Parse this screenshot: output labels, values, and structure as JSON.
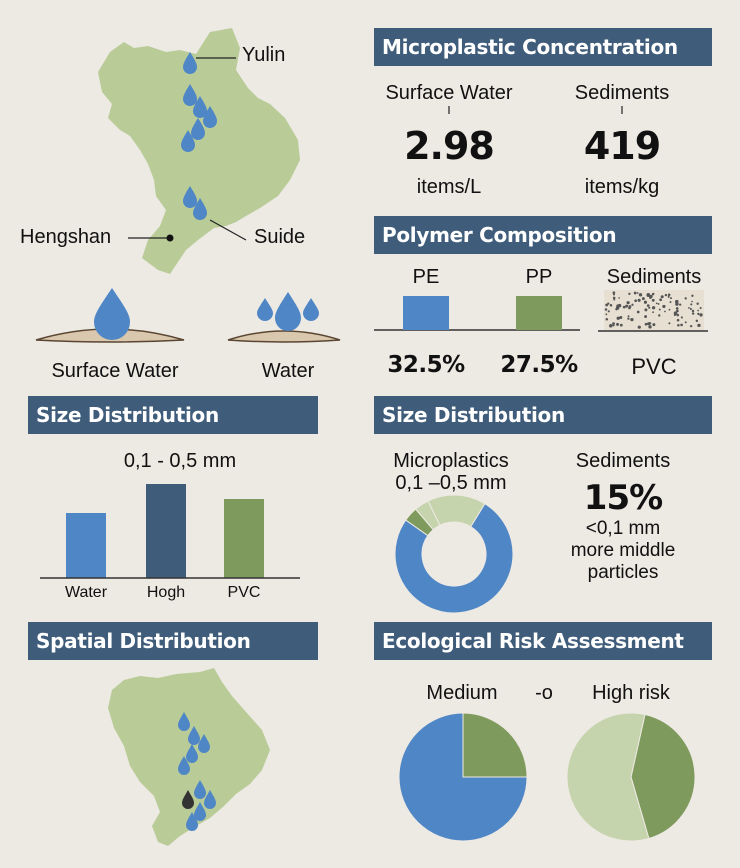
{
  "map_top": {
    "labels": {
      "yulin": "Yulin",
      "hengshan": "Hengshan",
      "suide": "Suide"
    },
    "land_color": "#b9cc98",
    "drop_color": "#4f86c6"
  },
  "water_icons": {
    "surface_label": "Surface Water",
    "water_label": "Water"
  },
  "concentration": {
    "title": "Microplastic Concentration",
    "surface": {
      "label": "Surface Water",
      "value": "2.98",
      "unit": "items/L"
    },
    "sediments": {
      "label": "Sediments",
      "value": "419",
      "unit": "items/kg"
    }
  },
  "polymer": {
    "title": "Polymer Composition",
    "pe": {
      "label": "PE",
      "value": "32.5%",
      "color": "#4f86c6"
    },
    "pp": {
      "label": "PP",
      "value": "27.5%",
      "color": "#7f9a5d"
    },
    "sediments": {
      "label": "Sediments",
      "value": "PVC"
    }
  },
  "size_left": {
    "title": "Size Distribution",
    "range": "0,1 - 0,5 mm",
    "chart_data": {
      "type": "bar",
      "categories": [
        "Water",
        "Hogh",
        "PVC"
      ],
      "values": [
        0.65,
        0.94,
        0.79
      ],
      "colors": [
        "#4f86c6",
        "#3f5c7a",
        "#7f9a5d"
      ],
      "ylim": [
        0,
        1
      ]
    }
  },
  "size_right": {
    "title": "Size Distribution",
    "micro_label": "Microplastics",
    "micro_range": "0,1 –0,5 mm",
    "sed_label": "Sediments",
    "sed_pct": "15%",
    "sed_desc1": "<0,1 mm",
    "sed_desc2": "more middle",
    "sed_desc3": "particles",
    "chart_data": {
      "type": "pie",
      "values": [
        76,
        4,
        4,
        16
      ],
      "colors": [
        "#4f86c6",
        "#7f9a5d",
        "#c6d4ad",
        "#c6d4ad"
      ]
    }
  },
  "spatial": {
    "title": "Spatial Distribution"
  },
  "risk": {
    "title": "Ecological Risk Assessment",
    "medium_label": "Medium",
    "arrow_label": "-o",
    "high_label": "High risk",
    "chart_data": [
      {
        "type": "pie",
        "values": [
          75,
          25
        ],
        "colors": [
          "#4f86c6",
          "#7f9a5d"
        ]
      },
      {
        "type": "pie",
        "values": [
          42,
          58
        ],
        "colors": [
          "#7f9a5d",
          "#c6d4ad"
        ]
      }
    ]
  }
}
